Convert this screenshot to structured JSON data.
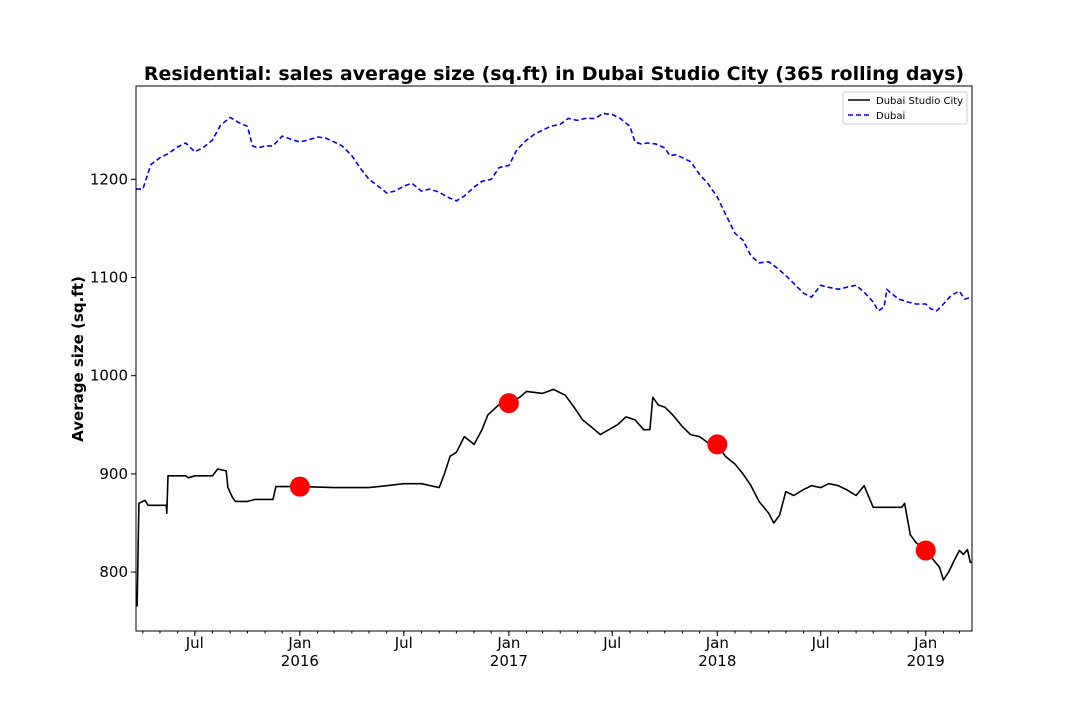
{
  "chart_data": {
    "type": "line",
    "title": "Residential: sales average size (sq.ft) in Dubai Studio City (365 rolling days)",
    "xlabel": "",
    "ylabel": "Average size (sq.ft)",
    "xlim": [
      "2015-03-20",
      "2019-03-23"
    ],
    "ylim": [
      740,
      1295
    ],
    "yticks": [
      800,
      900,
      1000,
      1100,
      1200
    ],
    "xticks": [
      {
        "date": "2015-07-01",
        "label": "Jul",
        "year": ""
      },
      {
        "date": "2016-01-01",
        "label": "Jan",
        "year": "2016"
      },
      {
        "date": "2016-07-01",
        "label": "Jul",
        "year": ""
      },
      {
        "date": "2017-01-01",
        "label": "Jan",
        "year": "2017"
      },
      {
        "date": "2017-07-01",
        "label": "Jul",
        "year": ""
      },
      {
        "date": "2018-01-01",
        "label": "Jan",
        "year": "2018"
      },
      {
        "date": "2018-07-01",
        "label": "Jul",
        "year": ""
      },
      {
        "date": "2019-01-01",
        "label": "Jan",
        "year": "2019"
      }
    ],
    "grid": false,
    "legend_position": "top-right",
    "series": [
      {
        "name": "Dubai Studio City",
        "color": "#000000",
        "style": "solid",
        "points": [
          [
            "2015-03-22",
            765
          ],
          [
            "2015-03-25",
            870
          ],
          [
            "2015-04-05",
            873
          ],
          [
            "2015-04-10",
            868
          ],
          [
            "2015-05-12",
            868
          ],
          [
            "2015-05-13",
            860
          ],
          [
            "2015-05-15",
            898
          ],
          [
            "2015-06-15",
            898
          ],
          [
            "2015-06-20",
            896
          ],
          [
            "2015-07-01",
            898
          ],
          [
            "2015-08-01",
            898
          ],
          [
            "2015-08-10",
            905
          ],
          [
            "2015-08-25",
            903
          ],
          [
            "2015-08-28",
            886
          ],
          [
            "2015-09-05",
            876
          ],
          [
            "2015-09-10",
            872
          ],
          [
            "2015-10-01",
            872
          ],
          [
            "2015-10-15",
            874
          ],
          [
            "2015-11-15",
            874
          ],
          [
            "2015-11-20",
            887
          ],
          [
            "2016-01-01",
            887
          ],
          [
            "2016-03-01",
            886
          ],
          [
            "2016-05-01",
            886
          ],
          [
            "2016-06-01",
            888
          ],
          [
            "2016-07-01",
            890
          ],
          [
            "2016-08-01",
            890
          ],
          [
            "2016-09-01",
            886
          ],
          [
            "2016-09-10",
            900
          ],
          [
            "2016-09-20",
            918
          ],
          [
            "2016-10-01",
            922
          ],
          [
            "2016-10-15",
            938
          ],
          [
            "2016-11-01",
            930
          ],
          [
            "2016-11-15",
            945
          ],
          [
            "2016-11-25",
            960
          ],
          [
            "2016-12-10",
            968
          ],
          [
            "2016-12-20",
            973
          ],
          [
            "2017-01-01",
            972
          ],
          [
            "2017-01-20",
            978
          ],
          [
            "2017-02-01",
            984
          ],
          [
            "2017-03-01",
            982
          ],
          [
            "2017-03-20",
            986
          ],
          [
            "2017-04-10",
            980
          ],
          [
            "2017-04-25",
            968
          ],
          [
            "2017-05-10",
            955
          ],
          [
            "2017-05-25",
            948
          ],
          [
            "2017-06-10",
            940
          ],
          [
            "2017-06-25",
            945
          ],
          [
            "2017-07-10",
            950
          ],
          [
            "2017-07-25",
            958
          ],
          [
            "2017-08-10",
            955
          ],
          [
            "2017-08-25",
            945
          ],
          [
            "2017-09-05",
            945
          ],
          [
            "2017-09-10",
            978
          ],
          [
            "2017-09-20",
            970
          ],
          [
            "2017-10-01",
            968
          ],
          [
            "2017-10-15",
            960
          ],
          [
            "2017-11-01",
            948
          ],
          [
            "2017-11-15",
            940
          ],
          [
            "2017-12-01",
            938
          ],
          [
            "2017-12-15",
            932
          ],
          [
            "2018-01-01",
            930
          ],
          [
            "2018-01-15",
            918
          ],
          [
            "2018-02-01",
            910
          ],
          [
            "2018-02-15",
            900
          ],
          [
            "2018-03-01",
            888
          ],
          [
            "2018-03-15",
            872
          ],
          [
            "2018-04-01",
            860
          ],
          [
            "2018-04-10",
            850
          ],
          [
            "2018-04-20",
            858
          ],
          [
            "2018-05-01",
            882
          ],
          [
            "2018-05-15",
            878
          ],
          [
            "2018-06-01",
            884
          ],
          [
            "2018-06-15",
            888
          ],
          [
            "2018-07-01",
            886
          ],
          [
            "2018-07-15",
            890
          ],
          [
            "2018-08-01",
            888
          ],
          [
            "2018-08-15",
            884
          ],
          [
            "2018-09-01",
            878
          ],
          [
            "2018-09-15",
            888
          ],
          [
            "2018-10-01",
            866
          ],
          [
            "2018-11-01",
            866
          ],
          [
            "2018-11-20",
            866
          ],
          [
            "2018-11-25",
            870
          ],
          [
            "2018-12-05",
            838
          ],
          [
            "2018-12-15",
            830
          ],
          [
            "2019-01-01",
            822
          ],
          [
            "2019-01-15",
            812
          ],
          [
            "2019-01-25",
            805
          ],
          [
            "2019-02-01",
            792
          ],
          [
            "2019-02-10",
            800
          ],
          [
            "2019-02-20",
            812
          ],
          [
            "2019-03-01",
            822
          ],
          [
            "2019-03-08",
            818
          ],
          [
            "2019-03-15",
            823
          ],
          [
            "2019-03-20",
            810
          ],
          [
            "2019-03-23",
            810
          ]
        ]
      },
      {
        "name": "Dubai",
        "color": "#0000ff",
        "style": "dashed",
        "points": [
          [
            "2015-03-20",
            1190
          ],
          [
            "2015-04-01",
            1190
          ],
          [
            "2015-04-15",
            1215
          ],
          [
            "2015-05-01",
            1222
          ],
          [
            "2015-05-15",
            1226
          ],
          [
            "2015-06-01",
            1233
          ],
          [
            "2015-06-15",
            1237
          ],
          [
            "2015-07-01",
            1228
          ],
          [
            "2015-07-15",
            1232
          ],
          [
            "2015-08-01",
            1240
          ],
          [
            "2015-08-15",
            1255
          ],
          [
            "2015-09-01",
            1263
          ],
          [
            "2015-09-15",
            1258
          ],
          [
            "2015-10-01",
            1254
          ],
          [
            "2015-10-10",
            1234
          ],
          [
            "2015-10-20",
            1232
          ],
          [
            "2015-11-01",
            1234
          ],
          [
            "2015-11-15",
            1234
          ],
          [
            "2015-12-01",
            1244
          ],
          [
            "2015-12-15",
            1241
          ],
          [
            "2016-01-01",
            1238
          ],
          [
            "2016-01-15",
            1240
          ],
          [
            "2016-02-01",
            1243
          ],
          [
            "2016-02-15",
            1242
          ],
          [
            "2016-03-01",
            1238
          ],
          [
            "2016-03-15",
            1234
          ],
          [
            "2016-04-01",
            1224
          ],
          [
            "2016-04-15",
            1212
          ],
          [
            "2016-05-01",
            1200
          ],
          [
            "2016-05-15",
            1194
          ],
          [
            "2016-06-01",
            1186
          ],
          [
            "2016-06-15",
            1188
          ],
          [
            "2016-07-01",
            1193
          ],
          [
            "2016-07-15",
            1196
          ],
          [
            "2016-08-01",
            1188
          ],
          [
            "2016-08-15",
            1190
          ],
          [
            "2016-09-01",
            1187
          ],
          [
            "2016-09-15",
            1182
          ],
          [
            "2016-10-01",
            1178
          ],
          [
            "2016-10-15",
            1183
          ],
          [
            "2016-11-01",
            1192
          ],
          [
            "2016-11-15",
            1198
          ],
          [
            "2016-12-01",
            1200
          ],
          [
            "2016-12-15",
            1212
          ],
          [
            "2017-01-01",
            1214
          ],
          [
            "2017-01-15",
            1230
          ],
          [
            "2017-02-01",
            1240
          ],
          [
            "2017-02-15",
            1246
          ],
          [
            "2017-03-01",
            1250
          ],
          [
            "2017-03-15",
            1254
          ],
          [
            "2017-04-01",
            1256
          ],
          [
            "2017-04-15",
            1262
          ],
          [
            "2017-05-01",
            1260
          ],
          [
            "2017-05-15",
            1262
          ],
          [
            "2017-06-01",
            1262
          ],
          [
            "2017-06-15",
            1267
          ],
          [
            "2017-07-01",
            1266
          ],
          [
            "2017-07-15",
            1262
          ],
          [
            "2017-08-01",
            1254
          ],
          [
            "2017-08-10",
            1238
          ],
          [
            "2017-08-20",
            1236
          ],
          [
            "2017-09-01",
            1237
          ],
          [
            "2017-09-15",
            1236
          ],
          [
            "2017-10-01",
            1232
          ],
          [
            "2017-10-10",
            1224
          ],
          [
            "2017-10-20",
            1225
          ],
          [
            "2017-11-01",
            1222
          ],
          [
            "2017-11-15",
            1218
          ],
          [
            "2017-12-01",
            1205
          ],
          [
            "2017-12-15",
            1196
          ],
          [
            "2018-01-01",
            1182
          ],
          [
            "2018-01-15",
            1165
          ],
          [
            "2018-02-01",
            1145
          ],
          [
            "2018-02-15",
            1138
          ],
          [
            "2018-03-01",
            1122
          ],
          [
            "2018-03-15",
            1115
          ],
          [
            "2018-04-01",
            1116
          ],
          [
            "2018-04-15",
            1110
          ],
          [
            "2018-05-01",
            1102
          ],
          [
            "2018-05-15",
            1094
          ],
          [
            "2018-06-01",
            1084
          ],
          [
            "2018-06-15",
            1080
          ],
          [
            "2018-07-01",
            1092
          ],
          [
            "2018-07-15",
            1090
          ],
          [
            "2018-08-01",
            1088
          ],
          [
            "2018-08-15",
            1090
          ],
          [
            "2018-09-01",
            1092
          ],
          [
            "2018-09-15",
            1085
          ],
          [
            "2018-10-01",
            1075
          ],
          [
            "2018-10-10",
            1066
          ],
          [
            "2018-10-20",
            1070
          ],
          [
            "2018-10-25",
            1088
          ],
          [
            "2018-11-01",
            1084
          ],
          [
            "2018-11-15",
            1078
          ],
          [
            "2018-12-01",
            1075
          ],
          [
            "2018-12-15",
            1073
          ],
          [
            "2019-01-01",
            1073
          ],
          [
            "2019-01-10",
            1068
          ],
          [
            "2019-01-20",
            1066
          ],
          [
            "2019-02-01",
            1073
          ],
          [
            "2019-02-15",
            1082
          ],
          [
            "2019-03-01",
            1086
          ],
          [
            "2019-03-10",
            1078
          ],
          [
            "2019-03-23",
            1080
          ]
        ]
      }
    ],
    "markers": {
      "color": "#ff0000",
      "points": [
        [
          "2016-01-01",
          887
        ],
        [
          "2017-01-01",
          972
        ],
        [
          "2018-01-01",
          930
        ],
        [
          "2019-01-01",
          822
        ]
      ]
    }
  }
}
